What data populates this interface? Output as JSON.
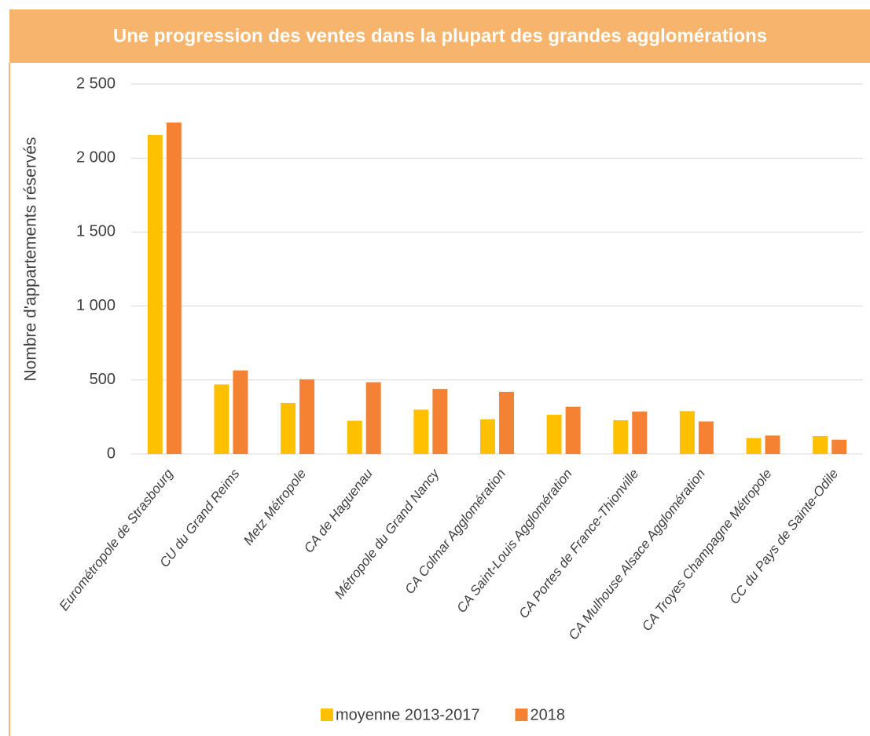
{
  "chart_data": {
    "type": "bar",
    "title": "Une progression des ventes dans la plupart des grandes agglomérations",
    "y_label": "Nombre d'appartements réservés",
    "categories": [
      "Eurométropole de Strasbourg",
      "CU du Grand Reims",
      "Metz Métropole",
      "CA de Haguenau",
      "Métropole du Grand Nancy",
      "CA Colmar Agglomération",
      "CA Saint-Louis Agglomération",
      "CA Portes de France-Thionville",
      "CA Mulhouse Alsace Agglomération",
      "CA Troyes Champagne Métropole",
      "CC du Pays de Sainte-Odile"
    ],
    "series": [
      {
        "name": "moyenne 2013-2017",
        "color": "#ffc000",
        "values": [
          2155,
          470,
          345,
          225,
          300,
          235,
          265,
          228,
          290,
          108,
          122
        ]
      },
      {
        "name": "2018",
        "color": "#f58233",
        "values": [
          2240,
          565,
          505,
          485,
          440,
          420,
          320,
          287,
          220,
          125,
          97
        ]
      }
    ],
    "ylim": [
      0,
      2500
    ],
    "yticks": [
      0,
      500,
      {
        "value": 1000,
        "label": "1 000"
      },
      {
        "value": 1500,
        "label": "1 500"
      },
      {
        "value": 2000,
        "label": "2 000"
      },
      {
        "value": 2500,
        "label": "2 500"
      }
    ],
    "grid": true,
    "legend": "bottom"
  }
}
